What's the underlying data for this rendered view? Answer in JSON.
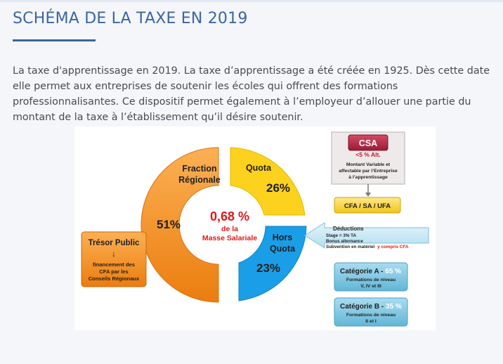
{
  "heading": "SCHÉMA DE LA TAXE EN 2019",
  "intro": "La taxe d'apprentissage en 2019. La taxe d’apprentissage a été créée en 1925. Dès cette date elle permet aux entreprises de soutenir les écoles qui offrent des formations professionnalisantes. Ce dispositif permet également à l’employeur d’allouer une partie du montant de la taxe à l’établissement qu’il désire soutenir.",
  "diagram": {
    "center": {
      "value": "0,68 %",
      "line1": "de la",
      "line2": "Masse Salariale"
    },
    "regional": {
      "label1": "Fraction",
      "label2": "Régionale",
      "percent": "51%",
      "share": 51,
      "color": "#f7941d"
    },
    "quota": {
      "label": "Quota",
      "percent": "26%",
      "share": 26,
      "color": "#fcd21e"
    },
    "hors_quota": {
      "label1": "Hors",
      "label2": "Quota",
      "percent": "23%",
      "share": 23,
      "color": "#1a9ee8"
    },
    "tresor": {
      "title": "Trésor Public",
      "arrow": "↓",
      "line1": "financement des",
      "line2": "CFA  par les",
      "line3": "Conseils Régionaux",
      "color": "#f7941d"
    },
    "csa": {
      "title": "CSA",
      "sub": "<5 % Alt.",
      "desc1": "Montant Variable  et",
      "desc2": "affectable  par  l’Entreprise",
      "desc3": "à l’apprentissage"
    },
    "cfa_box": "CFA / SA / UFA",
    "deductions": {
      "title": "Déductions",
      "line1": "Stage = 3% TA",
      "line2": "Bonus alternance",
      "line3": "Subvention en matériel",
      "line3_red": "y compris CFA"
    },
    "cat_a": {
      "title": "Catégorie A - ",
      "pct": "65 %",
      "line1": "Formations de niveau",
      "line2": "V, IV et III"
    },
    "cat_b": {
      "title": "Catégorie B - ",
      "pct": "35 %",
      "line1": "Formations de niveau",
      "line2": "II et I"
    }
  }
}
